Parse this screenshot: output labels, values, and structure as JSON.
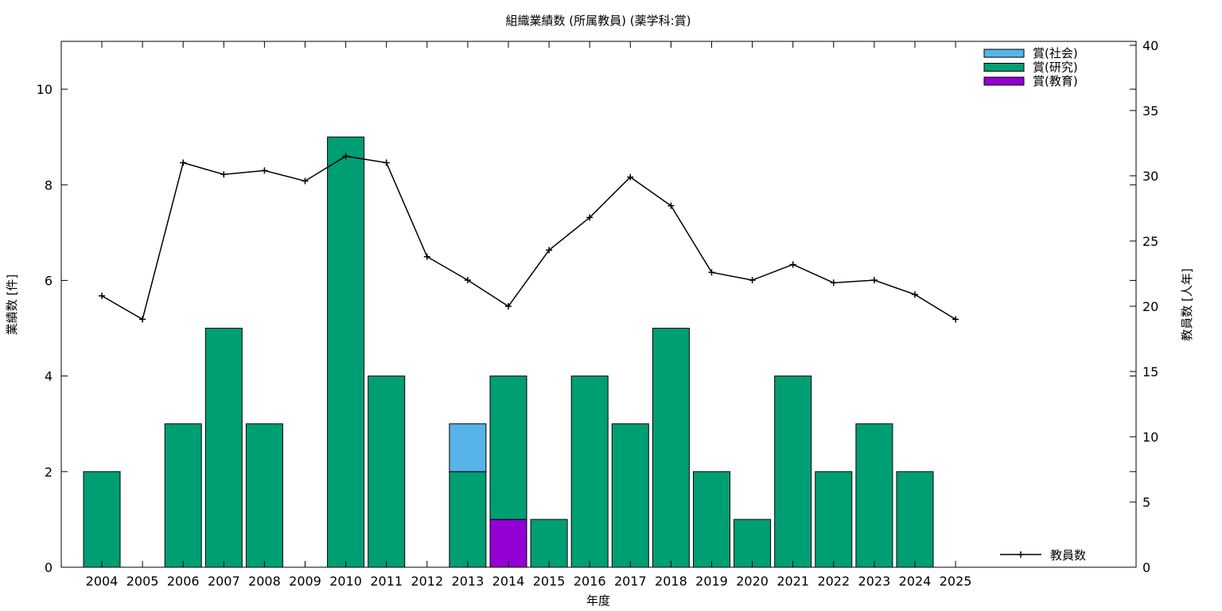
{
  "chart_data": {
    "type": "bar",
    "title": "組織業績数 (所属教員) (薬学科:賞)",
    "xlabel": "年度",
    "ylabel": "業績数 [件]",
    "y2label": "教員数 [人年]",
    "categories": [
      "2004",
      "2005",
      "2006",
      "2007",
      "2008",
      "2009",
      "2010",
      "2011",
      "2012",
      "2013",
      "2014",
      "2015",
      "2016",
      "2017",
      "2018",
      "2019",
      "2020",
      "2021",
      "2022",
      "2023",
      "2024",
      "2025"
    ],
    "stacked": true,
    "ylim": [
      0,
      11
    ],
    "y2lim": [
      0,
      40.3
    ],
    "yticks": [
      0,
      2,
      4,
      6,
      8,
      10
    ],
    "y2ticks": [
      0,
      5,
      10,
      15,
      20,
      25,
      30,
      35,
      40
    ],
    "grid": false,
    "legend_position": "top-right",
    "series": [
      {
        "name": "賞(教育)",
        "color": "#9400d3",
        "axis": "left",
        "type": "bar",
        "values": [
          0,
          0,
          0,
          0,
          0,
          0,
          0,
          0,
          0,
          0,
          1,
          0,
          0,
          0,
          0,
          0,
          0,
          0,
          0,
          0,
          0,
          0
        ]
      },
      {
        "name": "賞(研究)",
        "color": "#009e73",
        "axis": "left",
        "type": "bar",
        "values": [
          2,
          0,
          3,
          5,
          3,
          0,
          9,
          4,
          0,
          2,
          3,
          1,
          4,
          3,
          5,
          2,
          1,
          4,
          2,
          3,
          2,
          0
        ]
      },
      {
        "name": "賞(社会)",
        "color": "#56b4e9",
        "axis": "left",
        "type": "bar",
        "values": [
          0,
          0,
          0,
          0,
          0,
          0,
          0,
          0,
          0,
          1,
          0,
          0,
          0,
          0,
          0,
          0,
          0,
          0,
          0,
          0,
          0,
          0
        ]
      },
      {
        "name": "教員数",
        "color": "#000000",
        "axis": "right",
        "type": "line",
        "values": [
          20.8,
          19.0,
          31.0,
          30.1,
          30.4,
          29.6,
          31.5,
          31.0,
          23.8,
          22.0,
          20.0,
          24.3,
          26.8,
          29.9,
          27.7,
          22.6,
          22.0,
          23.2,
          21.8,
          22.0,
          20.9,
          19.0
        ]
      }
    ]
  }
}
